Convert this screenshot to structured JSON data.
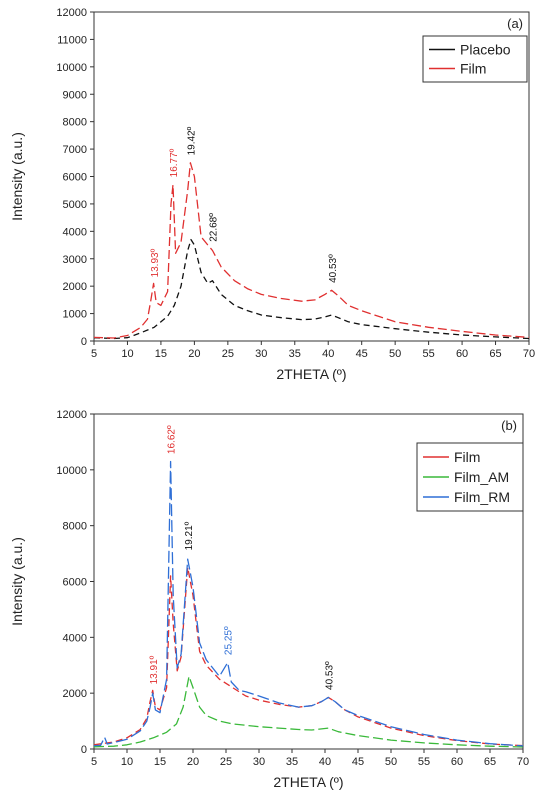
{
  "chart_data": [
    {
      "type": "line",
      "panel_label": "(a)",
      "xlabel": "2THETA (º)",
      "ylabel": "Intensity (a.u.)",
      "xlim": [
        5,
        70
      ],
      "ylim": [
        0,
        12000
      ],
      "xticks": [
        5,
        10,
        15,
        20,
        25,
        30,
        35,
        40,
        45,
        50,
        55,
        60,
        65,
        70
      ],
      "yticks": [
        0,
        1000,
        2000,
        3000,
        4000,
        5000,
        6000,
        7000,
        8000,
        9000,
        10000,
        11000,
        12000
      ],
      "legend_position": "top-right",
      "grid": false,
      "series": [
        {
          "name": "Placebo",
          "color": "#111111",
          "points": [
            [
              5,
              120
            ],
            [
              8,
              90
            ],
            [
              10,
              120
            ],
            [
              12,
              300
            ],
            [
              14,
              500
            ],
            [
              16,
              900
            ],
            [
              17,
              1300
            ],
            [
              18,
              2000
            ],
            [
              19,
              3300
            ],
            [
              19.5,
              3700
            ],
            [
              20,
              3500
            ],
            [
              21,
              2500
            ],
            [
              22,
              2100
            ],
            [
              22.7,
              2200
            ],
            [
              24,
              1700
            ],
            [
              26,
              1300
            ],
            [
              28,
              1100
            ],
            [
              30,
              950
            ],
            [
              33,
              850
            ],
            [
              36,
              780
            ],
            [
              38,
              800
            ],
            [
              39.5,
              880
            ],
            [
              40.5,
              950
            ],
            [
              41.5,
              850
            ],
            [
              43,
              700
            ],
            [
              45,
              600
            ],
            [
              50,
              450
            ],
            [
              55,
              320
            ],
            [
              60,
              220
            ],
            [
              65,
              150
            ],
            [
              70,
              90
            ]
          ]
        },
        {
          "name": "Film",
          "color": "#e03030",
          "points": [
            [
              5,
              130
            ],
            [
              8,
              110
            ],
            [
              10,
              200
            ],
            [
              12,
              500
            ],
            [
              13,
              800
            ],
            [
              13.5,
              1500
            ],
            [
              13.9,
              2100
            ],
            [
              14.3,
              1400
            ],
            [
              15,
              1300
            ],
            [
              16,
              1800
            ],
            [
              16.5,
              5000
            ],
            [
              16.8,
              5700
            ],
            [
              17.2,
              3200
            ],
            [
              18,
              3600
            ],
            [
              19,
              5500
            ],
            [
              19.4,
              6500
            ],
            [
              20,
              6000
            ],
            [
              21,
              3800
            ],
            [
              22,
              3500
            ],
            [
              22.7,
              3300
            ],
            [
              24,
              2700
            ],
            [
              26,
              2200
            ],
            [
              28,
              1900
            ],
            [
              30,
              1700
            ],
            [
              33,
              1550
            ],
            [
              36,
              1450
            ],
            [
              38,
              1500
            ],
            [
              39.5,
              1700
            ],
            [
              40.5,
              1850
            ],
            [
              41.5,
              1650
            ],
            [
              43,
              1300
            ],
            [
              45,
              1100
            ],
            [
              50,
              700
            ],
            [
              55,
              500
            ],
            [
              60,
              350
            ],
            [
              65,
              220
            ],
            [
              70,
              130
            ]
          ]
        }
      ],
      "annotations": [
        {
          "text": "13.93º",
          "x": 13.93,
          "y": 2100,
          "color": "#e03030"
        },
        {
          "text": "16.77º",
          "x": 16.77,
          "y": 5750,
          "color": "#e03030"
        },
        {
          "text": "19.42º",
          "x": 19.42,
          "y": 6550,
          "color": "#111111"
        },
        {
          "text": "22.68º",
          "x": 22.68,
          "y": 3400,
          "color": "#111111"
        },
        {
          "text": "40.53º",
          "x": 40.53,
          "y": 1900,
          "color": "#111111"
        }
      ]
    },
    {
      "type": "line",
      "panel_label": "(b)",
      "xlabel": "2THETA (º)",
      "ylabel": "Intensity (a.u.)",
      "xlim": [
        5,
        70
      ],
      "ylim": [
        0,
        12000
      ],
      "xticks": [
        5,
        10,
        15,
        20,
        25,
        30,
        35,
        40,
        45,
        50,
        55,
        60,
        65,
        70
      ],
      "yticks": [
        0,
        2000,
        4000,
        6000,
        8000,
        10000,
        12000
      ],
      "legend_position": "top-right",
      "grid": false,
      "series": [
        {
          "name": "Film",
          "color": "#e03030",
          "points": [
            [
              5,
              150
            ],
            [
              6.5,
              200
            ],
            [
              8,
              250
            ],
            [
              10,
              400
            ],
            [
              12,
              700
            ],
            [
              13,
              1100
            ],
            [
              13.5,
              1700
            ],
            [
              13.9,
              2100
            ],
            [
              14.3,
              1500
            ],
            [
              15,
              1400
            ],
            [
              16,
              2200
            ],
            [
              16.6,
              6200
            ],
            [
              17,
              4500
            ],
            [
              17.6,
              2800
            ],
            [
              18.2,
              3300
            ],
            [
              19.2,
              6500
            ],
            [
              20,
              5500
            ],
            [
              21,
              3500
            ],
            [
              22,
              3000
            ],
            [
              24,
              2500
            ],
            [
              26,
              2200
            ],
            [
              28,
              1900
            ],
            [
              30,
              1750
            ],
            [
              33,
              1600
            ],
            [
              36,
              1500
            ],
            [
              38,
              1550
            ],
            [
              39.5,
              1700
            ],
            [
              40.5,
              1850
            ],
            [
              41.5,
              1700
            ],
            [
              43,
              1400
            ],
            [
              45,
              1150
            ],
            [
              50,
              750
            ],
            [
              55,
              480
            ],
            [
              60,
              300
            ],
            [
              65,
              180
            ],
            [
              70,
              120
            ]
          ]
        },
        {
          "name": "Film_AM",
          "color": "#3ab93a",
          "points": [
            [
              5,
              80
            ],
            [
              8,
              100
            ],
            [
              10,
              150
            ],
            [
              12,
              250
            ],
            [
              14,
              400
            ],
            [
              16,
              600
            ],
            [
              17.5,
              900
            ],
            [
              18.5,
              1500
            ],
            [
              19.4,
              2600
            ],
            [
              20,
              2200
            ],
            [
              21,
              1500
            ],
            [
              22,
              1200
            ],
            [
              24,
              1000
            ],
            [
              26,
              900
            ],
            [
              28,
              850
            ],
            [
              30,
              800
            ],
            [
              33,
              750
            ],
            [
              36,
              700
            ],
            [
              38,
              680
            ],
            [
              40.5,
              750
            ],
            [
              42,
              620
            ],
            [
              45,
              480
            ],
            [
              50,
              320
            ],
            [
              55,
              220
            ],
            [
              60,
              150
            ],
            [
              65,
              100
            ],
            [
              70,
              70
            ]
          ]
        },
        {
          "name": "Film_RM",
          "color": "#2f6fd6",
          "points": [
            [
              5,
              120
            ],
            [
              6,
              130
            ],
            [
              6.6,
              420
            ],
            [
              7,
              180
            ],
            [
              8,
              230
            ],
            [
              10,
              350
            ],
            [
              12,
              650
            ],
            [
              13,
              1000
            ],
            [
              13.5,
              1500
            ],
            [
              13.9,
              2000
            ],
            [
              14.3,
              1400
            ],
            [
              15,
              1300
            ],
            [
              16,
              2500
            ],
            [
              16.6,
              10300
            ],
            [
              17,
              5500
            ],
            [
              17.6,
              2900
            ],
            [
              18.2,
              3400
            ],
            [
              19.2,
              6800
            ],
            [
              20,
              5800
            ],
            [
              21,
              3800
            ],
            [
              22,
              3200
            ],
            [
              24,
              2600
            ],
            [
              25.25,
              3100
            ],
            [
              25.8,
              2400
            ],
            [
              27,
              2100
            ],
            [
              28,
              2050
            ],
            [
              30,
              1900
            ],
            [
              33,
              1650
            ],
            [
              36,
              1500
            ],
            [
              38,
              1550
            ],
            [
              39.5,
              1700
            ],
            [
              40.5,
              1850
            ],
            [
              41.5,
              1700
            ],
            [
              43,
              1400
            ],
            [
              45,
              1200
            ],
            [
              50,
              800
            ],
            [
              55,
              520
            ],
            [
              60,
              320
            ],
            [
              65,
              190
            ],
            [
              70,
              110
            ]
          ]
        }
      ],
      "annotations": [
        {
          "text": "13.91º",
          "x": 13.91,
          "y": 2100,
          "color": "#e03030"
        },
        {
          "text": "16.62º",
          "x": 16.62,
          "y": 10350,
          "color": "#e03030"
        },
        {
          "text": "19.21º",
          "x": 19.21,
          "y": 6900,
          "color": "#111111"
        },
        {
          "text": "25.25º",
          "x": 25.25,
          "y": 3150,
          "color": "#2f6fd6"
        },
        {
          "text": "40.53º",
          "x": 40.53,
          "y": 1900,
          "color": "#111111"
        }
      ]
    }
  ]
}
